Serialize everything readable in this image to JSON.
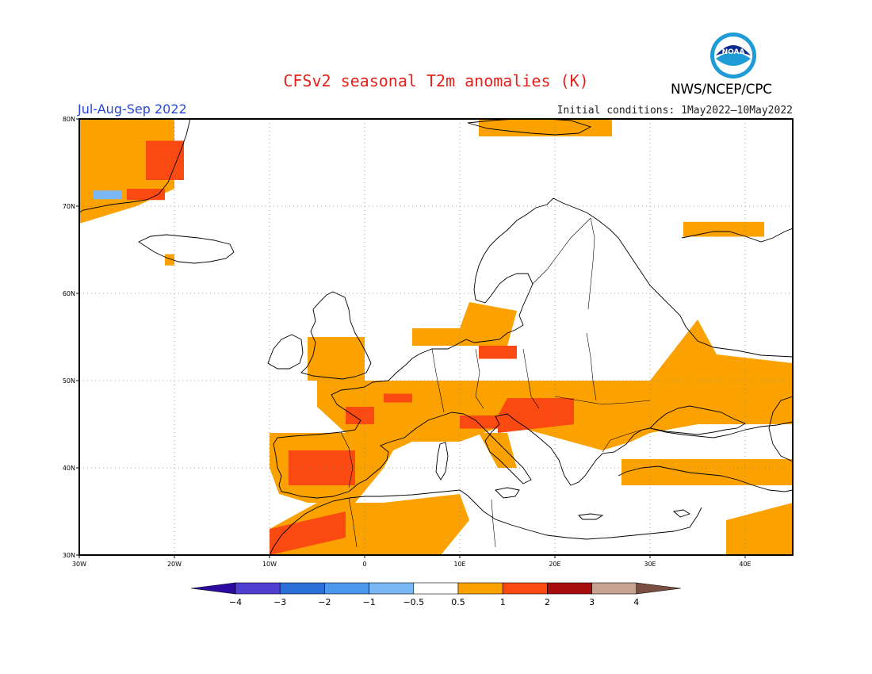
{
  "title": "CFSv2 seasonal T2m anomalies (K)",
  "agency": "NWS/NCEP/CPC",
  "period": "Jul-Aug-Sep 2022",
  "initial_conditions": "Initial conditions: 1May2022—10May2022",
  "logo": {
    "text": "NOAA",
    "icon": "noaa-logo-icon",
    "colors": {
      "ring": "#1f9bd6",
      "inner": "#0a2a8c"
    }
  },
  "map": {
    "extent": {
      "lon": [
        -30,
        45
      ],
      "lat": [
        30,
        80
      ]
    },
    "lon_ticks": [
      {
        "v": -30,
        "label": "30W"
      },
      {
        "v": -20,
        "label": "20W"
      },
      {
        "v": -10,
        "label": "10W"
      },
      {
        "v": 0,
        "label": "0"
      },
      {
        "v": 10,
        "label": "10E"
      },
      {
        "v": 20,
        "label": "20E"
      },
      {
        "v": 30,
        "label": "30E"
      },
      {
        "v": 40,
        "label": "40E"
      }
    ],
    "lat_ticks": [
      {
        "v": 30,
        "label": "30N"
      },
      {
        "v": 40,
        "label": "40N"
      },
      {
        "v": 50,
        "label": "50N"
      },
      {
        "v": 60,
        "label": "60N"
      },
      {
        "v": 70,
        "label": "70N"
      },
      {
        "v": 80,
        "label": "80N"
      }
    ],
    "anomaly_regions": [
      {
        "level": 1,
        "poly": [
          [
            -30,
            80
          ],
          [
            -20,
            80
          ],
          [
            -20,
            72
          ],
          [
            -24,
            70
          ],
          [
            -30,
            68
          ]
        ]
      },
      {
        "level": 2,
        "poly": [
          [
            -23,
            77.5
          ],
          [
            -19,
            77.5
          ],
          [
            -19,
            73
          ],
          [
            -23,
            73
          ]
        ]
      },
      {
        "level": 2,
        "poly": [
          [
            -25,
            72
          ],
          [
            -21,
            72
          ],
          [
            -21,
            70.7
          ],
          [
            -25,
            70.7
          ]
        ]
      },
      {
        "level": -1,
        "poly": [
          [
            -28.5,
            71.8
          ],
          [
            -25.5,
            71.8
          ],
          [
            -25.5,
            70.8
          ],
          [
            -28.5,
            70.8
          ]
        ]
      },
      {
        "level": 1,
        "poly": [
          [
            12,
            80
          ],
          [
            26,
            80
          ],
          [
            26,
            78
          ],
          [
            12,
            78
          ]
        ]
      },
      {
        "level": 1,
        "poly": [
          [
            -21,
            64.5
          ],
          [
            -20,
            64.5
          ],
          [
            -20,
            63.2
          ],
          [
            -21,
            63.2
          ]
        ]
      },
      {
        "level": 1,
        "poly": [
          [
            33.5,
            68.2
          ],
          [
            42,
            68.2
          ],
          [
            42,
            66.5
          ],
          [
            33.5,
            66.5
          ]
        ]
      },
      {
        "level": 1,
        "poly": [
          [
            -6,
            55
          ],
          [
            0,
            55
          ],
          [
            0,
            50
          ],
          [
            -6,
            50
          ]
        ]
      },
      {
        "level": 1,
        "poly": [
          [
            -5,
            50
          ],
          [
            30,
            50
          ],
          [
            35,
            57
          ],
          [
            37,
            53
          ],
          [
            45,
            52
          ],
          [
            45,
            45
          ],
          [
            35,
            45
          ],
          [
            30,
            44
          ],
          [
            28,
            43
          ],
          [
            25,
            42
          ],
          [
            15,
            45
          ],
          [
            10,
            43
          ],
          [
            5,
            43
          ],
          [
            3,
            42
          ],
          [
            -1,
            43
          ],
          [
            -5,
            47
          ]
        ]
      },
      {
        "level": 1,
        "poly": [
          [
            5,
            54
          ],
          [
            15,
            54
          ],
          [
            16,
            58
          ],
          [
            11,
            59
          ],
          [
            10,
            56
          ],
          [
            5,
            56
          ]
        ]
      },
      {
        "level": 1,
        "poly": [
          [
            -10,
            44
          ],
          [
            -2,
            44
          ],
          [
            3,
            42
          ],
          [
            2,
            40
          ],
          [
            -1,
            36
          ],
          [
            -6,
            36
          ],
          [
            -9,
            37
          ],
          [
            -10,
            40
          ]
        ]
      },
      {
        "level": 1,
        "poly": [
          [
            -10,
            30
          ],
          [
            -10,
            33
          ],
          [
            -5,
            36
          ],
          [
            2,
            36
          ],
          [
            10,
            37
          ],
          [
            11,
            34
          ],
          [
            8,
            30
          ]
        ]
      },
      {
        "level": 1,
        "poly": [
          [
            12,
            44
          ],
          [
            15,
            44
          ],
          [
            16,
            40
          ],
          [
            14,
            40
          ]
        ]
      },
      {
        "level": 1,
        "poly": [
          [
            27,
            41
          ],
          [
            45,
            41
          ],
          [
            45,
            38
          ],
          [
            27,
            38
          ]
        ]
      },
      {
        "level": 1,
        "poly": [
          [
            38,
            34
          ],
          [
            45,
            36
          ],
          [
            45,
            30
          ],
          [
            38,
            30
          ]
        ]
      },
      {
        "level": 2,
        "poly": [
          [
            15,
            48
          ],
          [
            22,
            48
          ],
          [
            22,
            45
          ],
          [
            14,
            44
          ],
          [
            14,
            46
          ]
        ]
      },
      {
        "level": 2,
        "poly": [
          [
            -2,
            47
          ],
          [
            1,
            47
          ],
          [
            1,
            45
          ],
          [
            -2,
            45
          ]
        ]
      },
      {
        "level": 2,
        "poly": [
          [
            -8,
            42
          ],
          [
            -1,
            42
          ],
          [
            -1,
            38
          ],
          [
            -8,
            38
          ]
        ]
      },
      {
        "level": 2,
        "poly": [
          [
            -10,
            33
          ],
          [
            -2,
            35
          ],
          [
            -2,
            32
          ],
          [
            -10,
            30
          ]
        ]
      },
      {
        "level": 2,
        "poly": [
          [
            12,
            54
          ],
          [
            16,
            54
          ],
          [
            16,
            52.5
          ],
          [
            12,
            52.5
          ]
        ]
      },
      {
        "level": 2,
        "poly": [
          [
            10,
            46
          ],
          [
            14,
            46
          ],
          [
            14,
            44.5
          ],
          [
            10,
            44.5
          ]
        ]
      },
      {
        "level": 2,
        "poly": [
          [
            2,
            48.5
          ],
          [
            5,
            48.5
          ],
          [
            5,
            47.5
          ],
          [
            2,
            47.5
          ]
        ]
      }
    ]
  },
  "colorbar": {
    "bounds": [
      -4,
      -3,
      -2,
      -1,
      -0.5,
      0.5,
      1,
      2,
      3,
      4
    ],
    "labels": [
      "−4",
      "−3",
      "−2",
      "−1",
      "−0.5",
      "0.5",
      "1",
      "2",
      "3",
      "4"
    ],
    "colors": [
      "#2c0aa0",
      "#4f3fd0",
      "#2a6fd8",
      "#4a97ee",
      "#7ab8f5",
      "#ffffff",
      "#fba200",
      "#fa4a12",
      "#a80d0d",
      "#c8a290",
      "#7a4f40"
    ]
  },
  "colors": {
    "land_line": "#000000",
    "grid": "#888888"
  }
}
